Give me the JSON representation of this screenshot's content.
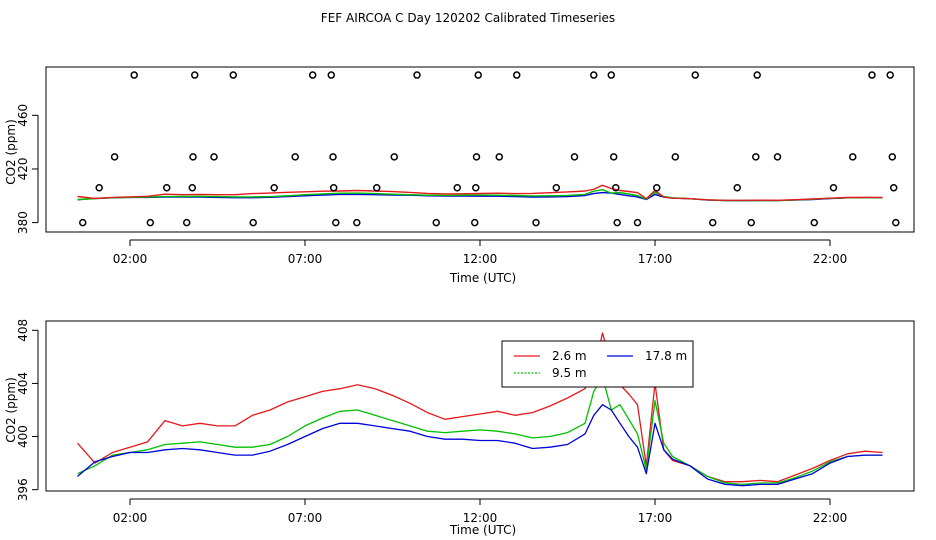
{
  "title": "FEF AIRCOA C  Day 120202  Calibrated Timeseries",
  "chart_data": [
    {
      "type": "scatter",
      "xlabel": "Time (UTC)",
      "ylabel": "CO2 (ppm)",
      "xlim": [
        -0.4,
        24.4
      ],
      "ylim": [
        373,
        496
      ],
      "x_ticks": [
        2,
        7,
        12,
        17,
        22
      ],
      "x_tick_labels": [
        "02:00",
        "07:00",
        "12:00",
        "17:00",
        "22:00"
      ],
      "y_ticks": [
        380,
        420,
        460
      ],
      "y_tick_labels": [
        "380",
        "420",
        "460"
      ],
      "grid": false,
      "legend": "none",
      "x": [
        0.65,
        1.12,
        1.56,
        2.12,
        2.58,
        3.05,
        3.62,
        3.78,
        3.8,
        3.85,
        4.4,
        4.95,
        5.52,
        6.12,
        6.72,
        7.22,
        7.75,
        7.8,
        7.82,
        7.88,
        8.48,
        9.05,
        9.55,
        10.2,
        10.75,
        11.35,
        11.85,
        11.88,
        11.9,
        11.95,
        12.55,
        13.05,
        13.6,
        14.18,
        14.7,
        15.25,
        15.75,
        15.82,
        15.88,
        15.92,
        16.5,
        17.05,
        17.58,
        18.15,
        18.65,
        19.35,
        19.75,
        19.88,
        19.92,
        20.5,
        21.55,
        22.1,
        22.65,
        23.2,
        23.72,
        23.78,
        23.82,
        23.88
      ],
      "y": [
        380,
        406,
        429,
        490,
        380,
        406,
        380,
        406,
        429,
        490,
        429,
        490,
        380,
        406,
        429,
        490,
        490,
        429,
        406,
        380,
        380,
        406,
        429,
        490,
        380,
        406,
        380,
        406,
        429,
        490,
        429,
        490,
        380,
        406,
        429,
        490,
        490,
        429,
        406,
        380,
        380,
        406,
        429,
        490,
        380,
        406,
        380,
        429,
        490,
        429,
        380,
        406,
        429,
        490,
        490,
        429,
        406,
        380
      ]
    },
    {
      "type": "line",
      "xlabel": "Time (UTC)",
      "ylabel": "CO2 (ppm)",
      "xlim": [
        -0.4,
        24.4
      ],
      "ylim": [
        395.9,
        408.7
      ],
      "x_ticks": [
        2,
        7,
        12,
        17,
        22
      ],
      "x_tick_labels": [
        "02:00",
        "07:00",
        "12:00",
        "17:00",
        "22:00"
      ],
      "y_ticks": [
        396,
        400,
        404,
        408
      ],
      "y_tick_labels": [
        "396",
        "400",
        "404",
        "408"
      ],
      "grid": false,
      "legend": "top-center",
      "x": [
        0.5,
        1.0,
        1.5,
        2.0,
        2.5,
        3.0,
        3.5,
        4.0,
        4.5,
        5.0,
        5.5,
        6.0,
        6.5,
        7.0,
        7.5,
        8.0,
        8.5,
        9.0,
        9.5,
        10.0,
        10.5,
        11.0,
        11.5,
        12.0,
        12.5,
        13.0,
        13.5,
        14.0,
        14.5,
        15.0,
        15.25,
        15.5,
        15.75,
        16.0,
        16.25,
        16.5,
        16.75,
        17.0,
        17.25,
        17.5,
        18.0,
        18.5,
        19.0,
        19.5,
        20.0,
        20.5,
        21.0,
        21.5,
        22.0,
        22.5,
        23.0,
        23.5
      ],
      "series": [
        {
          "name": "2.6 m",
          "color": "#e31a1c",
          "values": [
            399.5,
            398.0,
            398.8,
            399.2,
            399.6,
            401.2,
            400.8,
            401.0,
            400.8,
            400.8,
            401.6,
            402.0,
            402.6,
            403.0,
            403.4,
            403.6,
            403.9,
            403.6,
            403.1,
            402.5,
            401.8,
            401.3,
            401.5,
            401.7,
            401.9,
            401.6,
            401.8,
            402.3,
            402.9,
            403.6,
            404.8,
            407.8,
            405.4,
            403.9,
            403.2,
            402.4,
            397.8,
            404.0,
            399.0,
            398.2,
            397.8,
            397.0,
            396.6,
            396.6,
            396.7,
            396.6,
            397.1,
            397.6,
            398.2,
            398.7,
            398.9,
            398.8
          ]
        },
        {
          "name": "9.5 m",
          "color": "#00c000",
          "values": [
            397.2,
            397.8,
            398.6,
            398.8,
            399.0,
            399.4,
            399.5,
            399.6,
            399.4,
            399.2,
            399.2,
            399.4,
            400.0,
            400.8,
            401.4,
            401.9,
            402.0,
            401.6,
            401.2,
            400.8,
            400.4,
            400.3,
            400.4,
            400.5,
            400.4,
            400.2,
            399.9,
            400.0,
            400.3,
            401.0,
            403.4,
            404.5,
            402.0,
            402.4,
            401.3,
            400.2,
            397.5,
            402.7,
            399.5,
            398.5,
            397.8,
            397.0,
            396.5,
            396.4,
            396.5,
            396.5,
            396.9,
            397.4,
            398.1,
            398.5,
            398.6,
            398.6
          ]
        },
        {
          "name": "17.8 m",
          "color": "#0000dd",
          "values": [
            397.0,
            398.1,
            398.5,
            398.8,
            398.8,
            399.0,
            399.1,
            399.0,
            398.8,
            398.6,
            398.6,
            398.9,
            399.4,
            400.0,
            400.6,
            401.0,
            401.0,
            400.8,
            400.6,
            400.4,
            400.0,
            399.8,
            399.8,
            399.7,
            399.7,
            399.5,
            399.1,
            399.2,
            399.4,
            400.2,
            401.6,
            402.4,
            402.0,
            401.0,
            400.0,
            399.2,
            397.2,
            401.0,
            399.0,
            398.3,
            397.8,
            396.8,
            396.4,
            396.3,
            396.4,
            396.4,
            396.8,
            397.2,
            398.0,
            398.5,
            398.6,
            398.6
          ]
        }
      ]
    }
  ]
}
